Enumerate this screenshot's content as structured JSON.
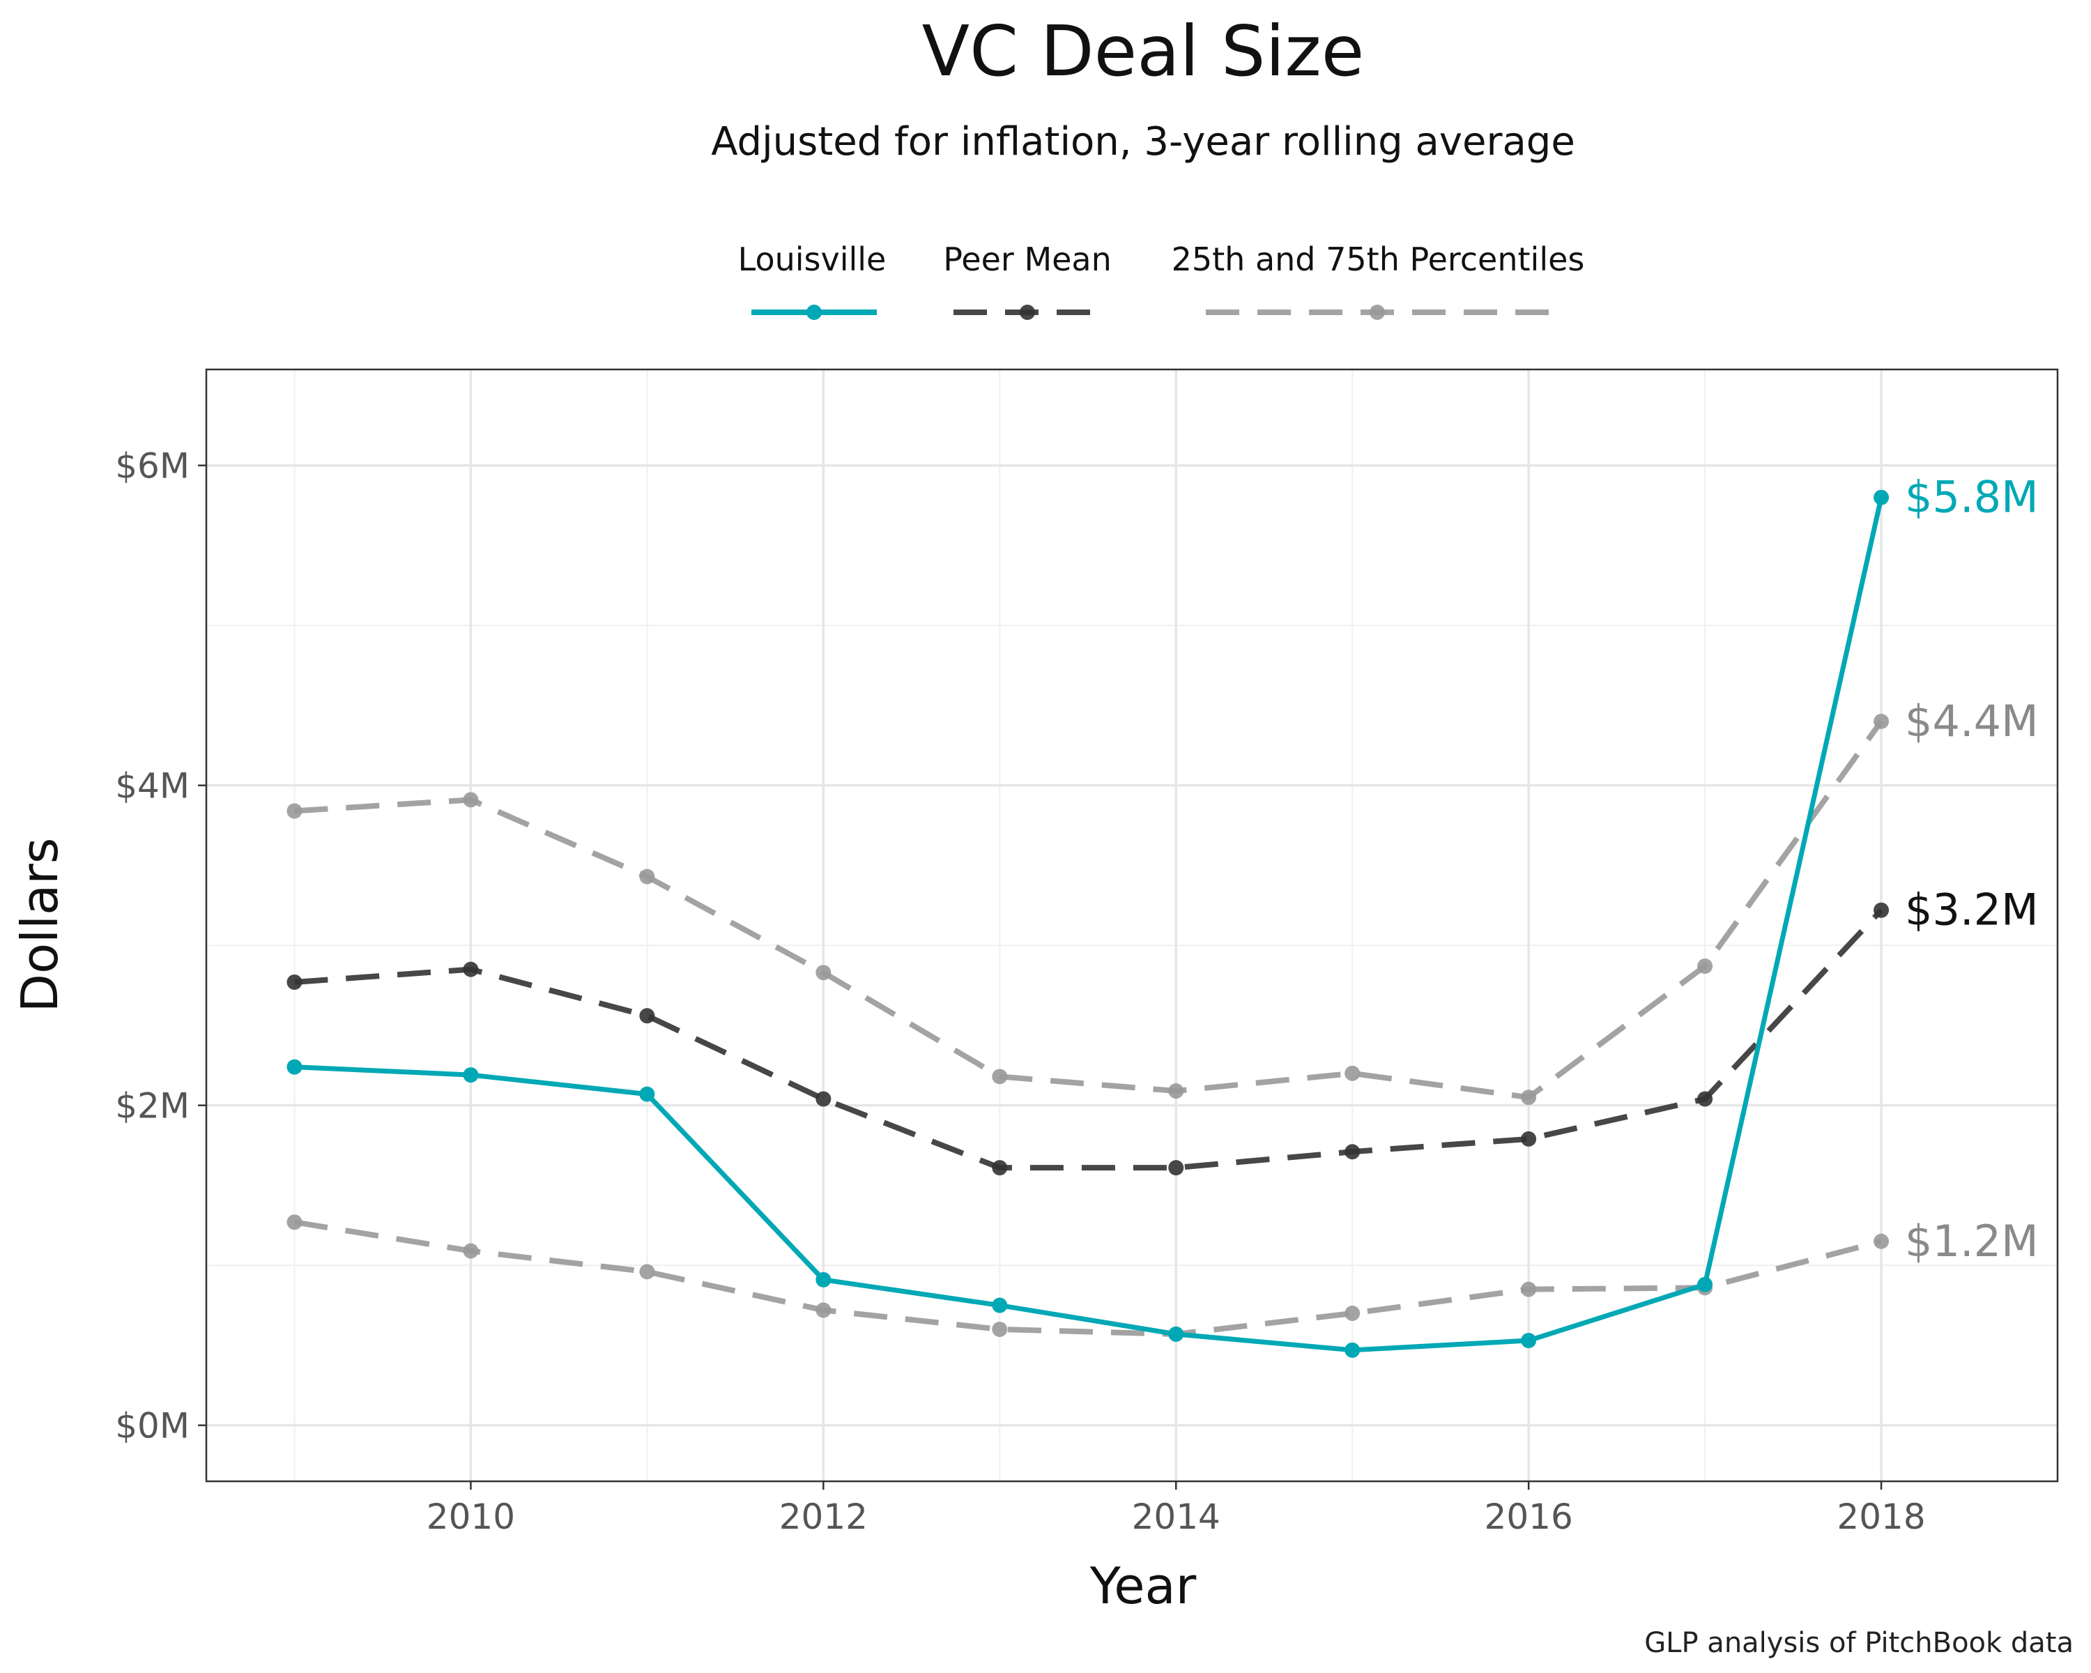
{
  "chart_data": {
    "type": "line",
    "title": "VC Deal Size",
    "subtitle": "Adjusted for inflation, 3-year rolling average",
    "xlabel": "Year",
    "ylabel": "Dollars",
    "caption": "GLP analysis of PitchBook data",
    "xlim": [
      2008.5,
      2019.0
    ],
    "ylim": [
      -0.35,
      6.6
    ],
    "x_ticks": [
      2010,
      2012,
      2014,
      2016,
      2018
    ],
    "x_tick_labels": [
      "2010",
      "2012",
      "2014",
      "2016",
      "2018"
    ],
    "y_ticks": [
      0,
      2,
      4,
      6
    ],
    "y_tick_labels": [
      "$0M",
      "$2M",
      "$4M",
      "$6M"
    ],
    "y_unit": "millions of dollars",
    "grid": true,
    "legend_position": "top",
    "x": [
      2009,
      2010,
      2011,
      2012,
      2013,
      2014,
      2015,
      2016,
      2017,
      2018
    ],
    "series": [
      {
        "name": "Louisville",
        "legend": "Louisville",
        "color": "#00a8b5",
        "style": "solid",
        "values": [
          2.24,
          2.19,
          2.07,
          0.91,
          0.75,
          0.57,
          0.47,
          0.53,
          0.88,
          5.8
        ],
        "end_label": "$5.8M"
      },
      {
        "name": "Peer Mean",
        "legend": "Peer Mean",
        "color": "#333333",
        "style": "dashed",
        "values": [
          2.77,
          2.85,
          2.56,
          2.04,
          1.61,
          1.61,
          1.71,
          1.79,
          2.04,
          3.22
        ],
        "end_label": "$3.2M"
      },
      {
        "name": "75th Percentile",
        "legend": "25th and 75th Percentiles",
        "color": "#999999",
        "style": "dashed",
        "values": [
          3.84,
          3.91,
          3.43,
          2.83,
          2.18,
          2.09,
          2.2,
          2.05,
          2.87,
          4.4
        ],
        "end_label": "$4.4M"
      },
      {
        "name": "25th Percentile",
        "legend": "25th and 75th Percentiles",
        "color": "#999999",
        "style": "dashed",
        "values": [
          1.27,
          1.09,
          0.96,
          0.72,
          0.6,
          0.57,
          0.7,
          0.85,
          0.86,
          1.15
        ],
        "end_label": "$1.2M"
      }
    ],
    "legend": [
      {
        "label": "Louisville",
        "color": "#00a8b5",
        "style": "solid"
      },
      {
        "label": "Peer Mean",
        "color": "#333333",
        "style": "dashed"
      },
      {
        "label": "25th and 75th Percentiles",
        "color": "#999999",
        "style": "dashed"
      }
    ]
  }
}
